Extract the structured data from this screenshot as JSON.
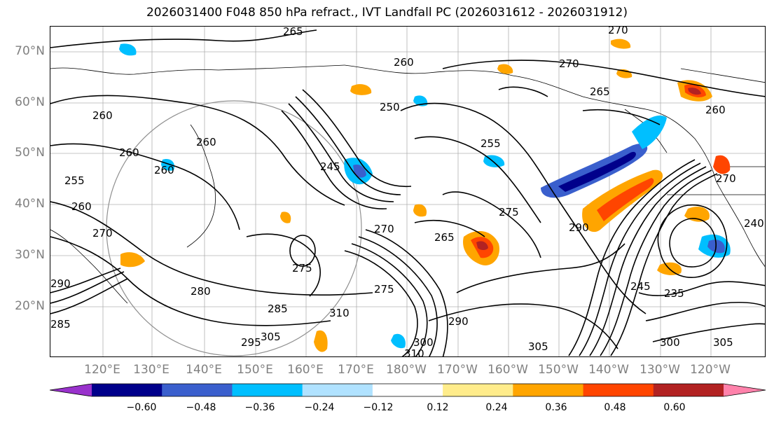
{
  "title": "2026031400 F048 850 hPa refract., IVT Landfall PC (2026031612 - 2026031912)",
  "map": {
    "lat_labels": [
      "70°N",
      "60°N",
      "50°N",
      "40°N",
      "30°N",
      "20°N"
    ],
    "lon_labels": [
      "120°E",
      "130°E",
      "140°E",
      "150°E",
      "160°E",
      "170°E",
      "180°W",
      "170°W",
      "160°W",
      "150°W",
      "140°W",
      "130°W",
      "120°W"
    ],
    "contour_labels": [
      "265",
      "270",
      "270",
      "260",
      "265",
      "260",
      "250",
      "260",
      "260",
      "260",
      "255",
      "245",
      "275",
      "270",
      "265",
      "275",
      "290",
      "240",
      "280",
      "285",
      "275",
      "310",
      "295",
      "305",
      "290",
      "300",
      "310",
      "305",
      "245",
      "235",
      "300",
      "305",
      "270",
      "260",
      "255",
      "260",
      "270",
      "290",
      "285"
    ],
    "colors": {
      "map_line": "#000000",
      "grid": "#b0b0b0",
      "ring": "#909090"
    }
  },
  "colorbar": {
    "ticks": [
      "−0.60",
      "−0.48",
      "−0.36",
      "−0.24",
      "−0.12",
      "0.12",
      "0.24",
      "0.36",
      "0.48",
      "0.60"
    ],
    "bins": [
      {
        "lo": null,
        "hi": -0.6,
        "color": "#9932cc"
      },
      {
        "lo": -0.6,
        "hi": -0.48,
        "color": "#00008b"
      },
      {
        "lo": -0.48,
        "hi": -0.36,
        "color": "#3a5fcd"
      },
      {
        "lo": -0.36,
        "hi": -0.24,
        "color": "#00bfff"
      },
      {
        "lo": -0.24,
        "hi": -0.12,
        "color": "#b0e2ff"
      },
      {
        "lo": -0.12,
        "hi": 0.12,
        "color": "#ffffff"
      },
      {
        "lo": 0.12,
        "hi": 0.24,
        "color": "#ffec8b"
      },
      {
        "lo": 0.24,
        "hi": 0.36,
        "color": "#ffa500"
      },
      {
        "lo": 0.36,
        "hi": 0.48,
        "color": "#ff4500"
      },
      {
        "lo": 0.48,
        "hi": 0.6,
        "color": "#b22222"
      },
      {
        "lo": 0.6,
        "hi": null,
        "color": "#ff82ab"
      }
    ]
  }
}
